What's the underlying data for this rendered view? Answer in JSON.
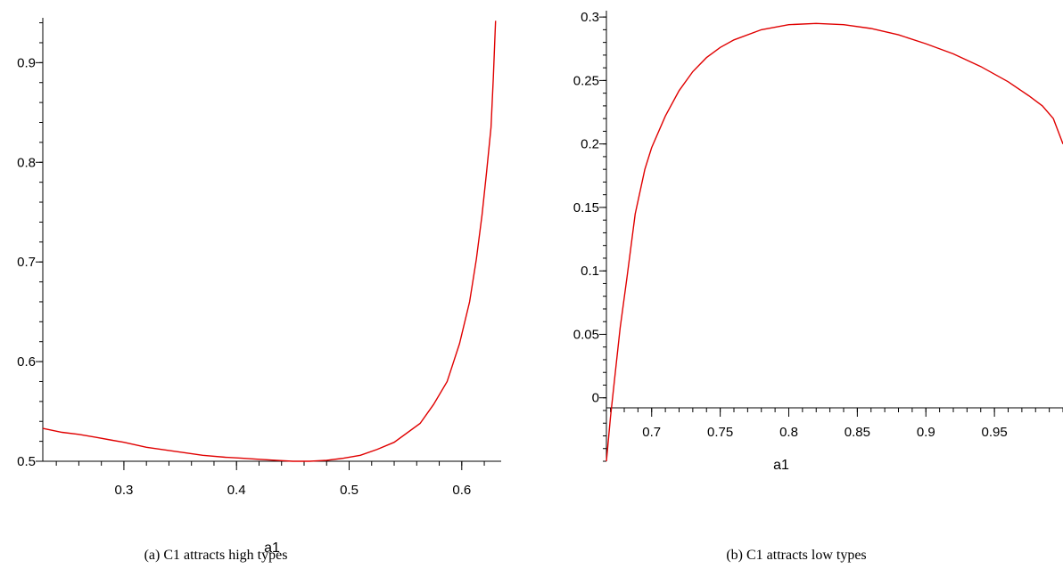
{
  "chart_data": [
    {
      "type": "line",
      "caption": "(a)  C1 attracts high types",
      "xlabel": "a1",
      "ylabel": "",
      "xlim": [
        0.228,
        0.635
      ],
      "ylim": [
        0.5,
        0.945
      ],
      "xticks": [
        0.3,
        0.4,
        0.5,
        0.6
      ],
      "xtick_labels": [
        "0.3",
        "0.4",
        "0.5",
        "0.6"
      ],
      "yticks": [
        0.5,
        0.6,
        0.7,
        0.8,
        0.9
      ],
      "ytick_labels": [
        "0.5",
        "0.6",
        "0.7",
        "0.8",
        "0.9"
      ],
      "grid": false,
      "line_color": "#e00000",
      "series": [
        {
          "x": [
            0.228,
            0.245,
            0.26,
            0.275,
            0.29,
            0.3,
            0.32,
            0.345,
            0.37,
            0.39,
            0.405,
            0.42,
            0.435,
            0.45,
            0.465,
            0.48,
            0.495,
            0.51,
            0.525,
            0.54,
            0.563,
            0.575,
            0.587,
            0.598,
            0.607,
            0.613,
            0.618,
            0.622,
            0.626,
            0.628,
            0.63
          ],
          "y": [
            0.533,
            0.529,
            0.527,
            0.524,
            0.521,
            0.519,
            0.514,
            0.51,
            0.506,
            0.504,
            0.503,
            0.502,
            0.501,
            0.5,
            0.5,
            0.501,
            0.503,
            0.506,
            0.512,
            0.519,
            0.538,
            0.557,
            0.58,
            0.618,
            0.66,
            0.703,
            0.747,
            0.79,
            0.835,
            0.885,
            0.942
          ]
        }
      ]
    },
    {
      "type": "line",
      "caption": "(b)  C1 attracts low types",
      "xlabel": "a1",
      "ylabel": "",
      "xlim": [
        0.667,
        1.0
      ],
      "ylim": [
        -0.05,
        0.305
      ],
      "xticks": [
        0.7,
        0.75,
        0.8,
        0.85,
        0.9,
        0.95
      ],
      "xtick_labels": [
        "0.7",
        "0.75",
        "0.8",
        "0.85",
        "0.9",
        "0.95"
      ],
      "yticks": [
        0,
        0.05,
        0.1,
        0.15,
        0.2,
        0.25,
        0.3
      ],
      "ytick_labels": [
        "0",
        "0.05",
        "0.1",
        "0.15",
        "0.2",
        "0.25",
        "0.3"
      ],
      "grid": false,
      "line_color": "#e00000",
      "series": [
        {
          "x": [
            0.667,
            0.67,
            0.673,
            0.677,
            0.682,
            0.688,
            0.695,
            0.7,
            0.71,
            0.72,
            0.73,
            0.74,
            0.75,
            0.76,
            0.78,
            0.8,
            0.82,
            0.84,
            0.86,
            0.88,
            0.9,
            0.92,
            0.94,
            0.96,
            0.975,
            0.985,
            0.993,
            1.0
          ],
          "y": [
            -0.05,
            -0.015,
            0.015,
            0.055,
            0.095,
            0.145,
            0.18,
            0.197,
            0.222,
            0.242,
            0.257,
            0.268,
            0.276,
            0.282,
            0.29,
            0.294,
            0.295,
            0.294,
            0.291,
            0.286,
            0.279,
            0.271,
            0.261,
            0.249,
            0.238,
            0.23,
            0.22,
            0.2
          ]
        }
      ]
    }
  ]
}
